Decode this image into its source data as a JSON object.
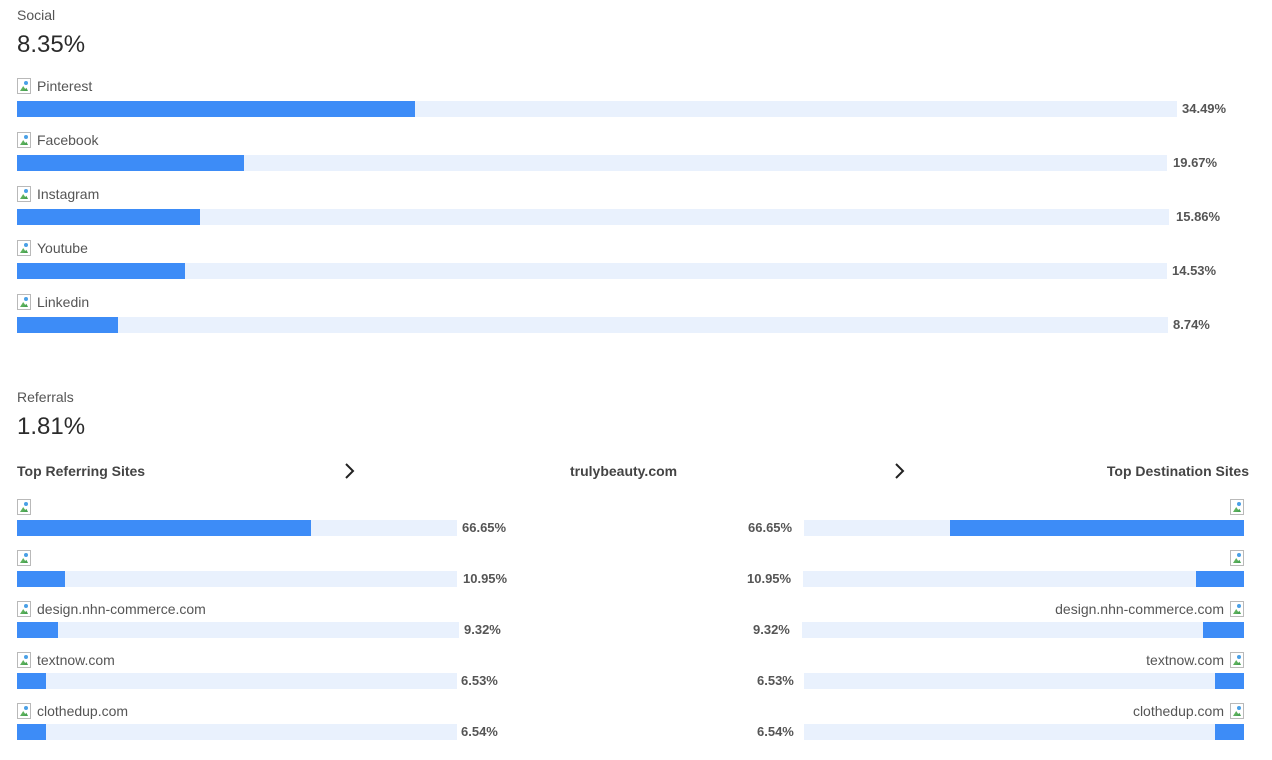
{
  "social": {
    "title": "Social",
    "value": "8.35%",
    "items": [
      {
        "label": "Pinterest",
        "percent": "34.49%",
        "share": 34.49
      },
      {
        "label": "Facebook",
        "percent": "19.67%",
        "share": 19.67
      },
      {
        "label": "Instagram",
        "percent": "15.86%",
        "share": 15.86
      },
      {
        "label": "Youtube",
        "percent": "14.53%",
        "share": 14.53
      },
      {
        "label": "Linkedin",
        "percent": "8.74%",
        "share": 8.74
      }
    ]
  },
  "referrals": {
    "title": "Referrals",
    "value": "1.81%",
    "top_referring_label": "Top Referring Sites",
    "site_label": "trulybeauty.com",
    "top_destination_label": "Top Destination Sites",
    "referring": [
      {
        "label": "",
        "percent": "66.65%",
        "share": 66.65
      },
      {
        "label": "",
        "percent": "10.95%",
        "share": 10.95
      },
      {
        "label": "design.nhn-commerce.com",
        "percent": "9.32%",
        "share": 9.32
      },
      {
        "label": "textnow.com",
        "percent": "6.53%",
        "share": 6.53
      },
      {
        "label": "clothedup.com",
        "percent": "6.54%",
        "share": 6.54
      }
    ],
    "destination": [
      {
        "label": "",
        "percent": "66.65%",
        "share": 66.65
      },
      {
        "label": "",
        "percent": "10.95%",
        "share": 10.95
      },
      {
        "label": "design.nhn-commerce.com",
        "percent": "9.32%",
        "share": 9.32
      },
      {
        "label": "textnow.com",
        "percent": "6.53%",
        "share": 6.53
      },
      {
        "label": "clothedup.com",
        "percent": "6.54%",
        "share": 6.54
      }
    ]
  },
  "colors": {
    "bar_fill": "#3d8cf7",
    "bar_track": "#e9f1fd"
  },
  "icons": {
    "favicon": "broken-image-icon",
    "arrow": "chevron-right-icon"
  }
}
